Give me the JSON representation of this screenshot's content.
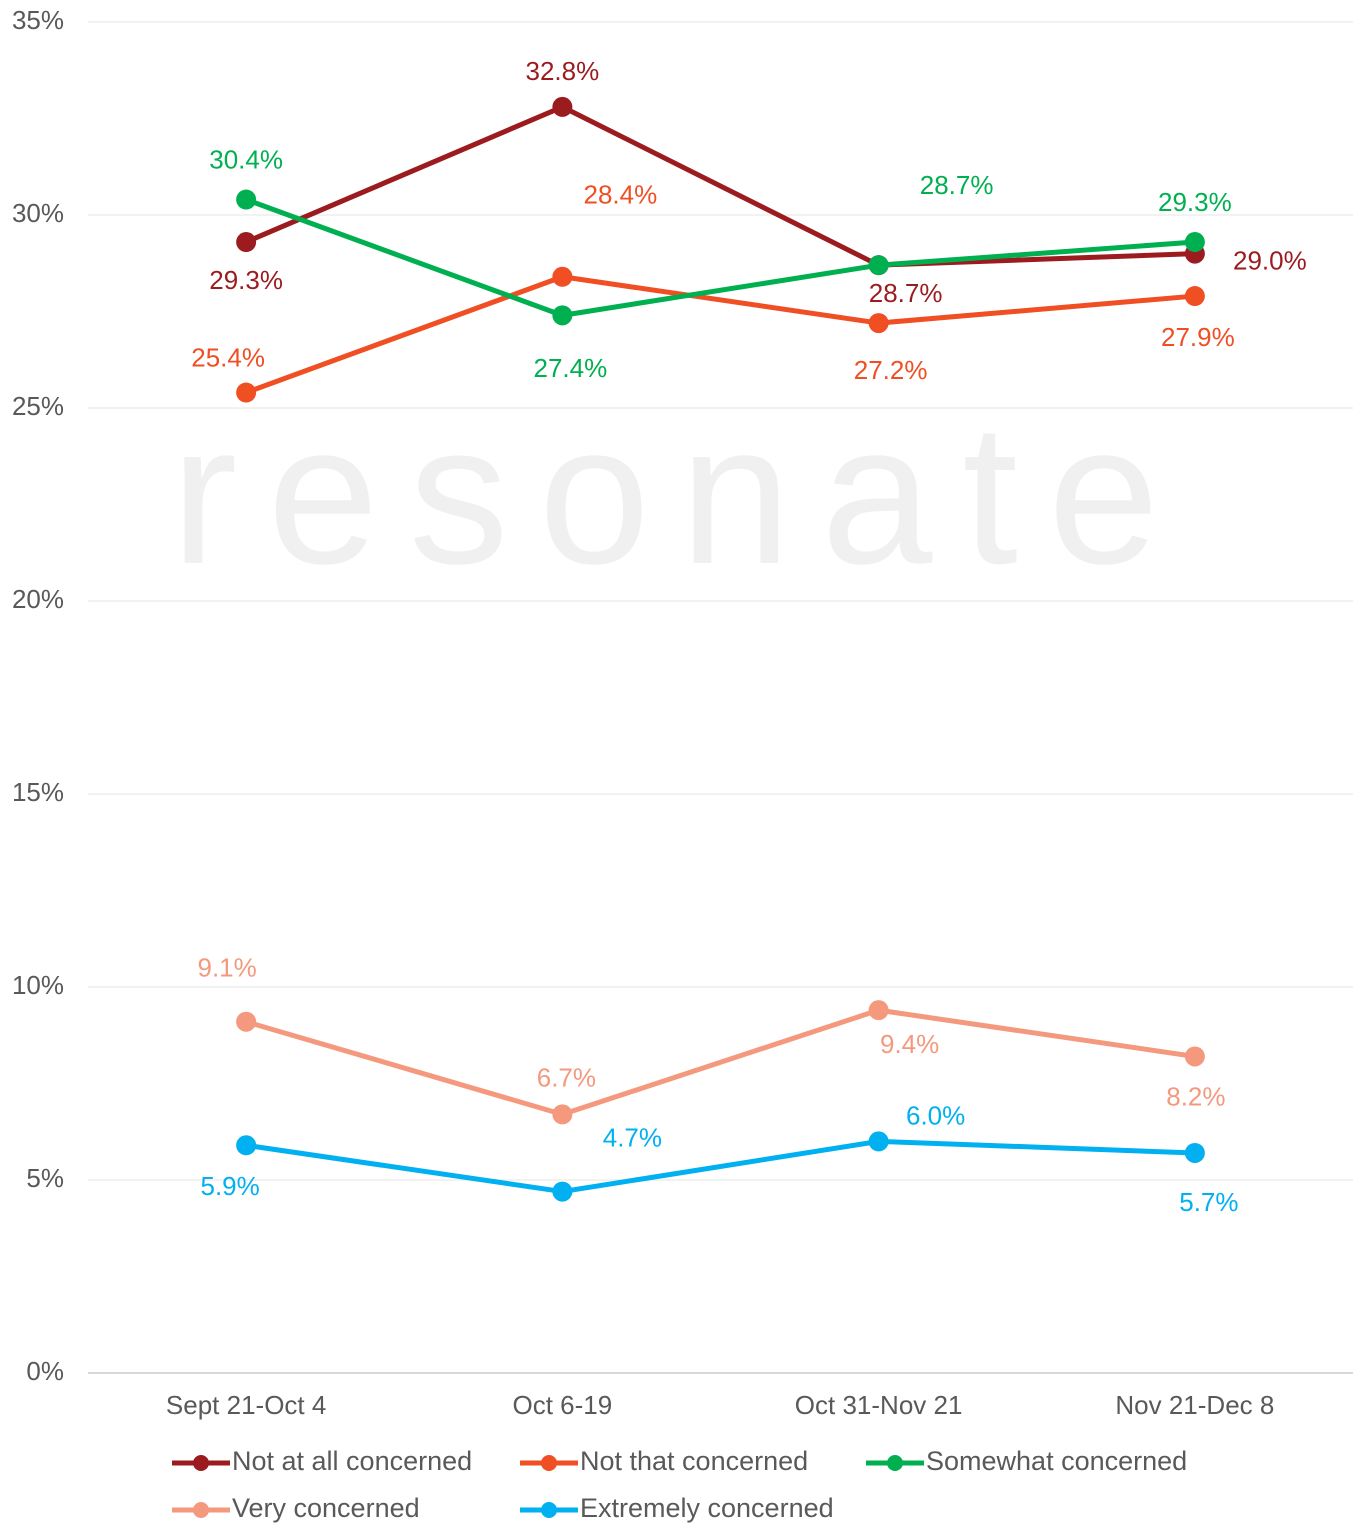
{
  "chart_data": {
    "type": "line",
    "watermark": "resonate",
    "categories": [
      "Sept 21-Oct 4",
      "Oct 6-19",
      "Oct 31-Nov 21",
      "Nov 21-Dec 8"
    ],
    "series": [
      {
        "name": "Not at all concerned",
        "color": "#9b1b1f",
        "values": [
          29.3,
          32.8,
          28.7,
          29.0
        ],
        "value_labels": [
          "29.3%",
          "32.8%",
          "28.7%",
          "29.0%"
        ]
      },
      {
        "name": "Not that concerned",
        "color": "#f04e23",
        "values": [
          25.4,
          28.4,
          27.2,
          27.9
        ],
        "value_labels": [
          "25.4%",
          "28.4%",
          "27.2%",
          "27.9%"
        ]
      },
      {
        "name": "Somewhat concerned",
        "color": "#00b050",
        "values": [
          30.4,
          27.4,
          28.7,
          29.3
        ],
        "value_labels": [
          "30.4%",
          "27.4%",
          "28.7%",
          "29.3%"
        ]
      },
      {
        "name": "Very concerned",
        "color": "#f4997e",
        "values": [
          9.1,
          6.7,
          9.4,
          8.2
        ],
        "value_labels": [
          "9.1%",
          "6.7%",
          "9.4%",
          "8.2%"
        ]
      },
      {
        "name": "Extremely concerned",
        "color": "#00b0f0",
        "values": [
          5.9,
          4.7,
          6.0,
          5.7
        ],
        "value_labels": [
          "5.9%",
          "4.7%",
          "6.0%",
          "5.7%"
        ]
      }
    ],
    "ylim": [
      0,
      35
    ],
    "yticks": [
      {
        "value": 0,
        "label": "0%"
      },
      {
        "value": 5,
        "label": "5%"
      },
      {
        "value": 10,
        "label": "10%"
      },
      {
        "value": 15,
        "label": "15%"
      },
      {
        "value": 20,
        "label": "20%"
      },
      {
        "value": 25,
        "label": "25%"
      },
      {
        "value": 30,
        "label": "30%"
      },
      {
        "value": 35,
        "label": "35%"
      }
    ],
    "grid": true,
    "legend": "bottom"
  }
}
